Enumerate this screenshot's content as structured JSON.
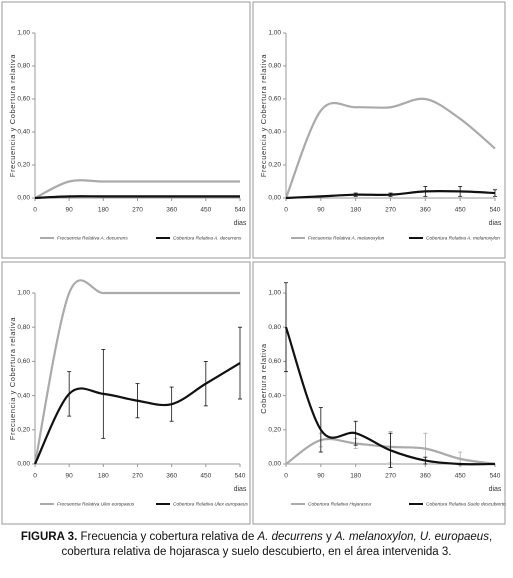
{
  "chart_data": [
    {
      "type": "line",
      "ylabel": "Frecuencia y Cobertura relativa",
      "xlabel": "dias",
      "x": [
        0,
        90,
        180,
        270,
        360,
        450,
        540
      ],
      "xlim": [
        0,
        540
      ],
      "xticks": [
        0,
        90,
        180,
        270,
        360,
        450,
        540
      ],
      "ylim": [
        0,
        1
      ],
      "yticks": [
        {
          "value": 0,
          "label": "0,00"
        },
        {
          "value": 0.2,
          "label": "0,20"
        },
        {
          "value": 0.4,
          "label": "0,40"
        },
        {
          "value": 0.6,
          "label": "0,60"
        },
        {
          "value": 0.8,
          "label": "0,80"
        },
        {
          "value": 1,
          "label": "1,00"
        }
      ],
      "series": [
        {
          "name": "Frecuencia Relativa A. decurrens",
          "color": "#aaaaaa",
          "values": [
            0,
            0.1,
            0.1,
            0.1,
            0.1,
            0.1,
            0.1
          ]
        },
        {
          "name": "Cobertura Relativa A. decurrens",
          "color": "#111111",
          "values": [
            0,
            0.01,
            0.01,
            0.01,
            0.01,
            0.01,
            0.01
          ]
        }
      ]
    },
    {
      "type": "line",
      "ylabel": "Frecuencia y Cobertura relativa",
      "xlabel": "dias",
      "x": [
        0,
        90,
        180,
        270,
        360,
        450,
        540
      ],
      "xlim": [
        0,
        540
      ],
      "xticks": [
        0,
        90,
        180,
        270,
        360,
        450,
        540
      ],
      "ylim": [
        0,
        1
      ],
      "yticks": [
        {
          "value": 0,
          "label": "0,00"
        },
        {
          "value": 0.2,
          "label": "0,20"
        },
        {
          "value": 0.4,
          "label": "0,40"
        },
        {
          "value": 0.6,
          "label": "0,60"
        },
        {
          "value": 0.8,
          "label": "0,80"
        },
        {
          "value": 1,
          "label": "1,00"
        }
      ],
      "series": [
        {
          "name": "Frecuencia Relativa A. melanoxylon",
          "color": "#aaaaaa",
          "values": [
            0,
            0.53,
            0.55,
            0.55,
            0.6,
            0.48,
            0.3
          ]
        },
        {
          "name": "Cobertura Relativa A. melanoxylon",
          "color": "#111111",
          "values": [
            0,
            0.01,
            0.02,
            0.02,
            0.04,
            0.04,
            0.03
          ],
          "errors": [
            null,
            null,
            0.01,
            0.01,
            0.03,
            0.03,
            0.02
          ]
        }
      ]
    },
    {
      "type": "line",
      "ylabel": "Frecuencia y Cobertura relativa",
      "xlabel": "dias",
      "x": [
        0,
        90,
        180,
        270,
        360,
        450,
        540
      ],
      "xlim": [
        0,
        540
      ],
      "xticks": [
        0,
        90,
        180,
        270,
        360,
        450,
        540
      ],
      "ylim": [
        0,
        1
      ],
      "yticks": [
        {
          "value": 0,
          "label": "0,00"
        },
        {
          "value": 0.2,
          "label": "0,20"
        },
        {
          "value": 0.4,
          "label": "0,40"
        },
        {
          "value": 0.6,
          "label": "0,60"
        },
        {
          "value": 0.8,
          "label": "0,80"
        },
        {
          "value": 1,
          "label": "1,00"
        }
      ],
      "series": [
        {
          "name": "Frecuencia Relativa Ulex europaeus",
          "color": "#aaaaaa",
          "values": [
            0,
            1.0,
            1.0,
            1.0,
            1.0,
            1.0,
            1.0
          ]
        },
        {
          "name": "Cobertura Relativa Ulex europaeus",
          "color": "#111111",
          "values": [
            0,
            0.41,
            0.41,
            0.37,
            0.35,
            0.47,
            0.59
          ],
          "errors": [
            null,
            0.13,
            0.26,
            0.1,
            0.1,
            0.13,
            0.21
          ]
        }
      ]
    },
    {
      "type": "line",
      "ylabel": "Cobertura relativa",
      "xlabel": "dias",
      "x": [
        0,
        90,
        180,
        270,
        360,
        450,
        540
      ],
      "xlim": [
        0,
        540
      ],
      "xticks": [
        0,
        90,
        180,
        270,
        360,
        450,
        540
      ],
      "ylim": [
        0,
        1
      ],
      "yticks": [
        {
          "value": 0,
          "label": "0,00"
        },
        {
          "value": 0.2,
          "label": "0,20"
        },
        {
          "value": 0.4,
          "label": "0,40"
        },
        {
          "value": 0.6,
          "label": "0,60"
        },
        {
          "value": 0.8,
          "label": "0,80"
        },
        {
          "value": 1,
          "label": "1,00"
        }
      ],
      "series": [
        {
          "name": "Cobertura Relativa Hojarasca",
          "color": "#aaaaaa",
          "values": [
            0,
            0.14,
            0.12,
            0.1,
            0.09,
            0.03,
            0
          ],
          "errors": [
            null,
            0.04,
            0.03,
            0.09,
            0.09,
            0.04,
            null
          ]
        },
        {
          "name": "Cobertura Relativa Suelo descubierto",
          "color": "#111111",
          "values": [
            0.8,
            0.2,
            0.18,
            0.08,
            0.02,
            0,
            0
          ],
          "errors": [
            0.26,
            0.13,
            0.07,
            0.1,
            0.02,
            null,
            null
          ]
        }
      ]
    }
  ],
  "caption": [
    "FIGURA 3.",
    " Frecuencia y cobertura relativa de ",
    "A. decurrens",
    " y ",
    "A. melanoxylon, U. europaeus",
    ", cobertura relativa de hojarasca y suelo descubierto, en el área intervenida 3."
  ]
}
